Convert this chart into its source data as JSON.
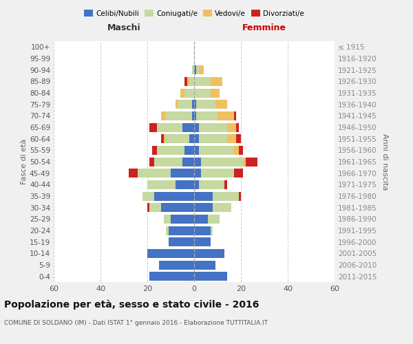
{
  "age_groups": [
    "0-4",
    "5-9",
    "10-14",
    "15-19",
    "20-24",
    "25-29",
    "30-34",
    "35-39",
    "40-44",
    "45-49",
    "50-54",
    "55-59",
    "60-64",
    "65-69",
    "70-74",
    "75-79",
    "80-84",
    "85-89",
    "90-94",
    "95-99",
    "100+"
  ],
  "birth_years": [
    "2011-2015",
    "2006-2010",
    "2001-2005",
    "1996-2000",
    "1991-1995",
    "1986-1990",
    "1981-1985",
    "1976-1980",
    "1971-1975",
    "1966-1970",
    "1961-1965",
    "1956-1960",
    "1951-1955",
    "1946-1950",
    "1941-1945",
    "1936-1940",
    "1931-1935",
    "1926-1930",
    "1921-1925",
    "1916-1920",
    "≤ 1915"
  ],
  "colors": {
    "celibe": "#4472c4",
    "coniugato": "#c5d9a0",
    "vedovo": "#f0c060",
    "divorziato": "#cc2222"
  },
  "males": {
    "celibe": [
      19,
      15,
      20,
      11,
      11,
      10,
      14,
      17,
      8,
      10,
      5,
      4,
      2,
      5,
      1,
      1,
      0,
      0,
      0,
      0,
      0
    ],
    "coniugato": [
      0,
      0,
      0,
      0,
      1,
      3,
      5,
      5,
      12,
      14,
      12,
      12,
      10,
      11,
      11,
      6,
      4,
      2,
      1,
      0,
      0
    ],
    "vedovo": [
      0,
      0,
      0,
      0,
      0,
      0,
      0,
      0,
      0,
      0,
      0,
      0,
      1,
      0,
      2,
      1,
      2,
      1,
      0,
      0,
      0
    ],
    "divorziato": [
      0,
      0,
      0,
      0,
      0,
      0,
      1,
      0,
      0,
      4,
      2,
      2,
      1,
      3,
      0,
      0,
      0,
      1,
      0,
      0,
      0
    ]
  },
  "females": {
    "nubile": [
      14,
      9,
      13,
      7,
      7,
      6,
      8,
      8,
      2,
      3,
      3,
      2,
      2,
      2,
      1,
      1,
      0,
      0,
      1,
      0,
      0
    ],
    "coniugata": [
      0,
      0,
      0,
      0,
      1,
      5,
      8,
      11,
      11,
      14,
      18,
      15,
      12,
      12,
      9,
      8,
      7,
      7,
      1,
      0,
      0
    ],
    "vedova": [
      0,
      0,
      0,
      0,
      0,
      0,
      0,
      0,
      0,
      0,
      1,
      2,
      4,
      4,
      7,
      5,
      4,
      5,
      2,
      0,
      0
    ],
    "divorziata": [
      0,
      0,
      0,
      0,
      0,
      0,
      0,
      1,
      1,
      4,
      5,
      2,
      2,
      1,
      1,
      0,
      0,
      0,
      0,
      0,
      0
    ]
  },
  "xlim": 60,
  "title": "Popolazione per età, sesso e stato civile - 2016",
  "subtitle": "COMUNE DI SOLDANO (IM) - Dati ISTAT 1° gennaio 2016 - Elaborazione TUTTITALIA.IT",
  "ylabel_left": "Fasce di età",
  "ylabel_right": "Anni di nascita",
  "xlabel_left": "Maschi",
  "xlabel_right": "Femmine",
  "bg_color": "#f0f0f0",
  "plot_bg": "#ffffff",
  "grid_color": "#cccccc"
}
